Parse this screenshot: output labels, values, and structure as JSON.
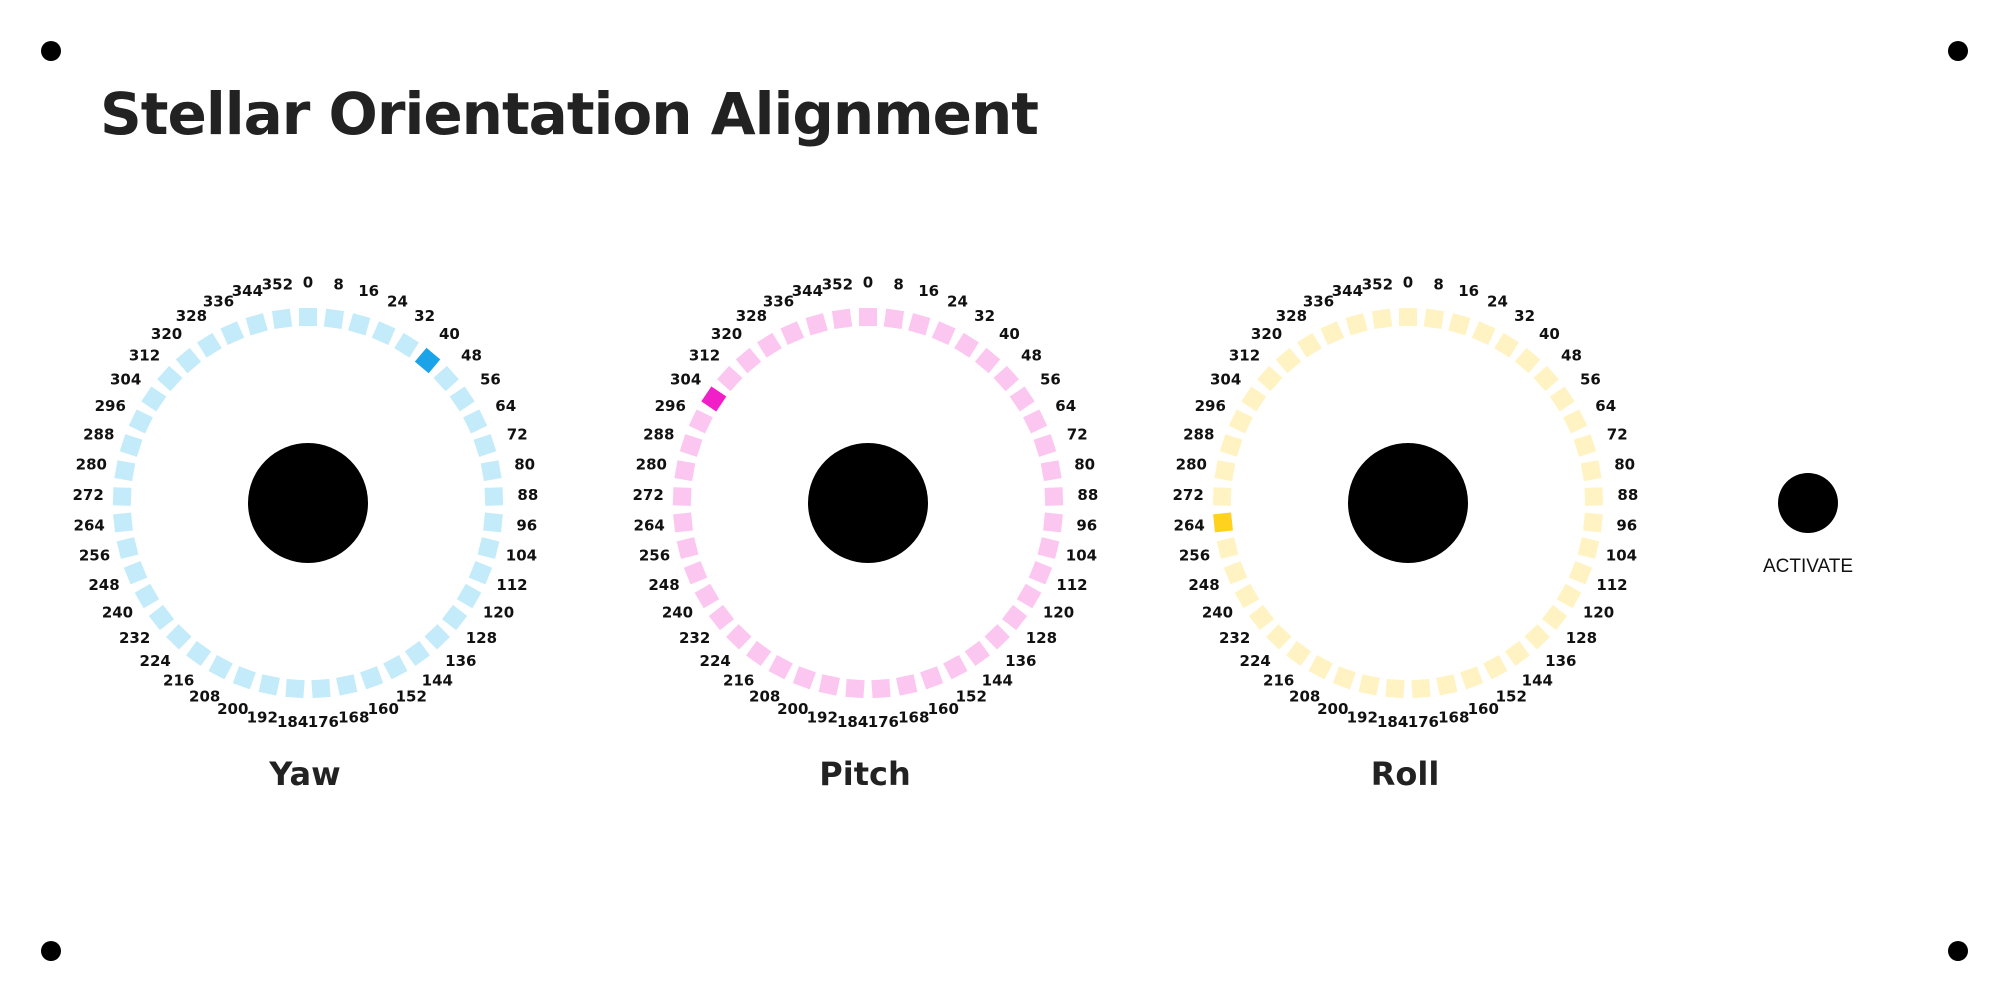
{
  "title": "Stellar Orientation Alignment",
  "dial_ticks": [
    0,
    8,
    16,
    24,
    32,
    40,
    48,
    56,
    64,
    72,
    80,
    88,
    96,
    104,
    112,
    120,
    128,
    136,
    144,
    152,
    160,
    168,
    176,
    184,
    192,
    200,
    208,
    216,
    224,
    232,
    240,
    248,
    256,
    264,
    272,
    280,
    288,
    296,
    304,
    312,
    320,
    328,
    336,
    344,
    352
  ],
  "dials": [
    {
      "label": "Yaw",
      "selected": 40,
      "color": "#c4ebf9",
      "active_color": "#1aa3e8"
    },
    {
      "label": "Pitch",
      "selected": 304,
      "color": "#fbc6f0",
      "active_color": "#f01fc8"
    },
    {
      "label": "Roll",
      "selected": 264,
      "color": "#fff3c4",
      "active_color": "#ffd21f"
    }
  ],
  "button": {
    "label": "ACTIVATE"
  }
}
